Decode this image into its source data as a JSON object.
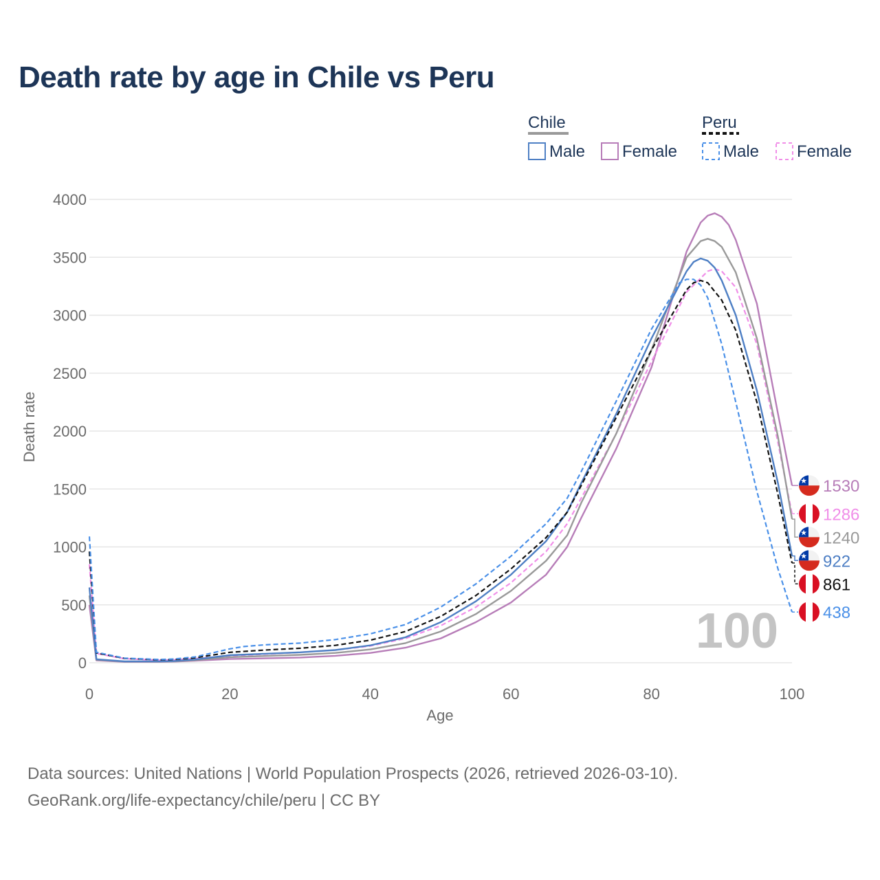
{
  "title": "Death rate by age in Chile vs Peru",
  "legend": {
    "groups": [
      {
        "label": "Chile",
        "style": "solid",
        "color": "#999999"
      },
      {
        "label": "Peru",
        "style": "dashed",
        "color": "#111111"
      }
    ],
    "items": [
      {
        "label": "Male",
        "style": "solid",
        "color": "#4e7fc4"
      },
      {
        "label": "Female",
        "style": "solid",
        "color": "#b77db8"
      },
      {
        "label": "Male",
        "style": "dashed",
        "color": "#4a90e8"
      },
      {
        "label": "Female",
        "style": "dashed",
        "color": "#f08ee8"
      }
    ]
  },
  "current_age_label": "100",
  "source": {
    "line1": "Data sources: United Nations | World Population Prospects (2026, retrieved 2026-03-10).",
    "line2": "GeoRank.org/life-expectancy/chile/peru | CC BY"
  },
  "chart_data": {
    "type": "line",
    "title": "Death rate by age in Chile vs Peru",
    "xlabel": "Age",
    "ylabel": "Death rate",
    "xlim": [
      0,
      100
    ],
    "ylim": [
      0,
      4000
    ],
    "x_ticks": [
      0,
      20,
      40,
      60,
      80,
      100
    ],
    "y_ticks": [
      0,
      500,
      1000,
      1500,
      2000,
      2500,
      3000,
      3500,
      4000
    ],
    "grid": true,
    "series": [
      {
        "name": "Chile Female",
        "country": "Chile",
        "sex": "Female",
        "dash": false,
        "color": "#b77db8",
        "end_value": 1530,
        "x": [
          0,
          1,
          5,
          10,
          12,
          15,
          20,
          25,
          30,
          35,
          40,
          45,
          50,
          55,
          60,
          65,
          68,
          70,
          75,
          80,
          85,
          87,
          88,
          89,
          90,
          91,
          92,
          95,
          98,
          100
        ],
        "y": [
          500,
          20,
          8,
          8,
          10,
          18,
          32,
          38,
          45,
          60,
          85,
          130,
          210,
          350,
          520,
          760,
          1000,
          1250,
          1850,
          2550,
          3550,
          3800,
          3860,
          3880,
          3850,
          3780,
          3650,
          3100,
          2150,
          1530
        ]
      },
      {
        "name": "Peru Female",
        "country": "Peru",
        "sex": "Female",
        "dash": true,
        "color": "#f08ee8",
        "end_value": 1286,
        "x": [
          0,
          1,
          5,
          10,
          12,
          15,
          20,
          25,
          30,
          35,
          40,
          45,
          50,
          55,
          60,
          65,
          68,
          70,
          75,
          80,
          85,
          88,
          89,
          90,
          92,
          95,
          98,
          100
        ],
        "y": [
          850,
          80,
          35,
          22,
          25,
          35,
          60,
          75,
          90,
          110,
          145,
          210,
          320,
          480,
          690,
          960,
          1200,
          1420,
          1980,
          2600,
          3200,
          3380,
          3400,
          3380,
          3240,
          2750,
          1900,
          1286
        ]
      },
      {
        "name": "Chile Total",
        "country": "Chile",
        "sex": "Both",
        "dash": false,
        "color": "#999999",
        "end_value": 1240,
        "x": [
          0,
          1,
          5,
          10,
          12,
          15,
          20,
          25,
          30,
          35,
          40,
          45,
          50,
          55,
          60,
          65,
          68,
          70,
          75,
          80,
          85,
          87,
          88,
          89,
          90,
          92,
          95,
          98,
          100
        ],
        "y": [
          580,
          25,
          10,
          10,
          12,
          22,
          48,
          58,
          68,
          85,
          115,
          170,
          270,
          420,
          620,
          880,
          1100,
          1380,
          1980,
          2700,
          3500,
          3640,
          3660,
          3640,
          3590,
          3370,
          2800,
          1950,
          1240
        ]
      },
      {
        "name": "Chile Male",
        "country": "Chile",
        "sex": "Male",
        "dash": false,
        "color": "#4e7fc4",
        "end_value": 922,
        "x": [
          0,
          1,
          5,
          10,
          12,
          15,
          20,
          25,
          30,
          35,
          40,
          45,
          50,
          55,
          60,
          65,
          68,
          70,
          75,
          80,
          85,
          86,
          87,
          88,
          89,
          90,
          92,
          95,
          98,
          100
        ],
        "y": [
          650,
          30,
          12,
          12,
          15,
          28,
          65,
          78,
          90,
          110,
          150,
          220,
          350,
          530,
          760,
          1050,
          1300,
          1550,
          2150,
          2800,
          3380,
          3460,
          3490,
          3470,
          3410,
          3300,
          3000,
          2350,
          1550,
          922
        ]
      },
      {
        "name": "Peru Total",
        "country": "Peru",
        "sex": "Both",
        "dash": true,
        "color": "#111111",
        "end_value": 861,
        "x": [
          0,
          1,
          5,
          10,
          12,
          15,
          20,
          25,
          30,
          35,
          40,
          45,
          50,
          55,
          60,
          65,
          68,
          70,
          75,
          80,
          85,
          86,
          87,
          88,
          90,
          92,
          95,
          98,
          100
        ],
        "y": [
          960,
          85,
          38,
          25,
          28,
          42,
          90,
          110,
          125,
          150,
          195,
          270,
          400,
          580,
          810,
          1080,
          1300,
          1530,
          2120,
          2700,
          3220,
          3280,
          3300,
          3280,
          3130,
          2870,
          2250,
          1450,
          861
        ]
      },
      {
        "name": "Peru Male",
        "country": "Peru",
        "sex": "Male",
        "dash": true,
        "color": "#4a90e8",
        "end_value": 438,
        "x": [
          0,
          1,
          5,
          10,
          12,
          15,
          20,
          22,
          25,
          30,
          35,
          40,
          45,
          50,
          55,
          60,
          65,
          68,
          70,
          75,
          80,
          84,
          85,
          86,
          87,
          88,
          90,
          92,
          95,
          98,
          100
        ],
        "y": [
          1090,
          90,
          40,
          28,
          32,
          50,
          120,
          140,
          155,
          170,
          200,
          250,
          330,
          480,
          680,
          920,
          1200,
          1420,
          1650,
          2260,
          2880,
          3280,
          3310,
          3310,
          3260,
          3150,
          2750,
          2250,
          1480,
          810,
          438
        ]
      }
    ]
  }
}
